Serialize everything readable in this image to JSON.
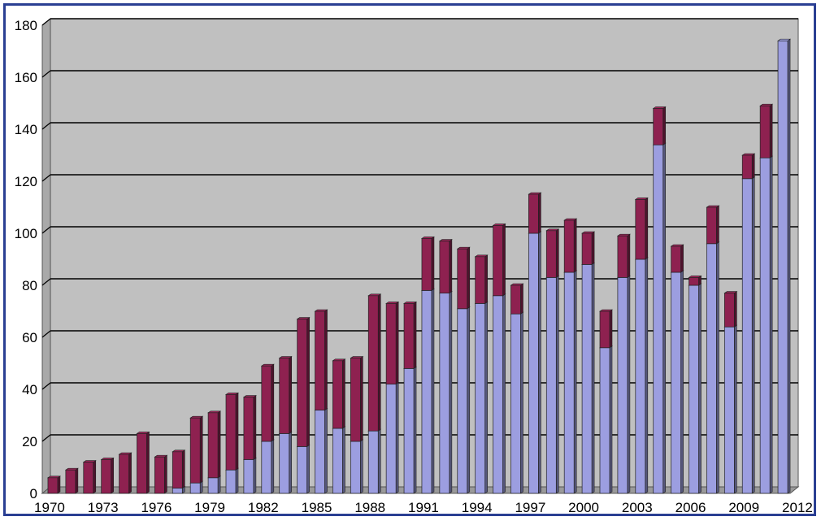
{
  "chart_data": {
    "type": "bar",
    "stacked": true,
    "style": "3d",
    "ylim": [
      0,
      180
    ],
    "y_ticks": [
      0,
      20,
      40,
      60,
      80,
      100,
      120,
      140,
      160,
      180
    ],
    "x_tick_labels": [
      "1970",
      "1973",
      "1976",
      "1979",
      "1982",
      "1985",
      "1988",
      "1991",
      "1994",
      "1997",
      "2000",
      "2003",
      "2006",
      "2009",
      "2012"
    ],
    "x": [
      1970,
      1971,
      1972,
      1973,
      1974,
      1975,
      1976,
      1977,
      1978,
      1979,
      1980,
      1981,
      1982,
      1983,
      1984,
      1985,
      1986,
      1987,
      1988,
      1989,
      1990,
      1991,
      1992,
      1993,
      1994,
      1995,
      1996,
      1997,
      1998,
      1999,
      2000,
      2001,
      2002,
      2003,
      2004,
      2005,
      2006,
      2007,
      2008,
      2009,
      2010,
      2011
    ],
    "series": [
      {
        "color": "#9c9ee0",
        "values": [
          0,
          0,
          0,
          0,
          0,
          0,
          0,
          2,
          4,
          6,
          9,
          13,
          20,
          23,
          18,
          32,
          25,
          20,
          24,
          42,
          48,
          78,
          77,
          71,
          73,
          76,
          69,
          100,
          83,
          85,
          88,
          56,
          83,
          90,
          134,
          85,
          80,
          96,
          64,
          121,
          129,
          174
        ]
      },
      {
        "color": "#8e2150",
        "values": [
          6,
          9,
          12,
          13,
          15,
          23,
          14,
          14,
          25,
          25,
          29,
          24,
          29,
          29,
          49,
          38,
          26,
          32,
          52,
          31,
          25,
          20,
          20,
          23,
          18,
          27,
          11,
          15,
          18,
          20,
          12,
          14,
          16,
          23,
          14,
          10,
          3,
          14,
          13,
          9,
          20,
          0
        ]
      }
    ],
    "colors": {
      "plot_background": "#c0c0c0",
      "gridline": "#000000",
      "frame_border": "#2a3f93"
    },
    "grid": true,
    "legend": "none",
    "title": "",
    "xlabel": "",
    "ylabel": ""
  }
}
